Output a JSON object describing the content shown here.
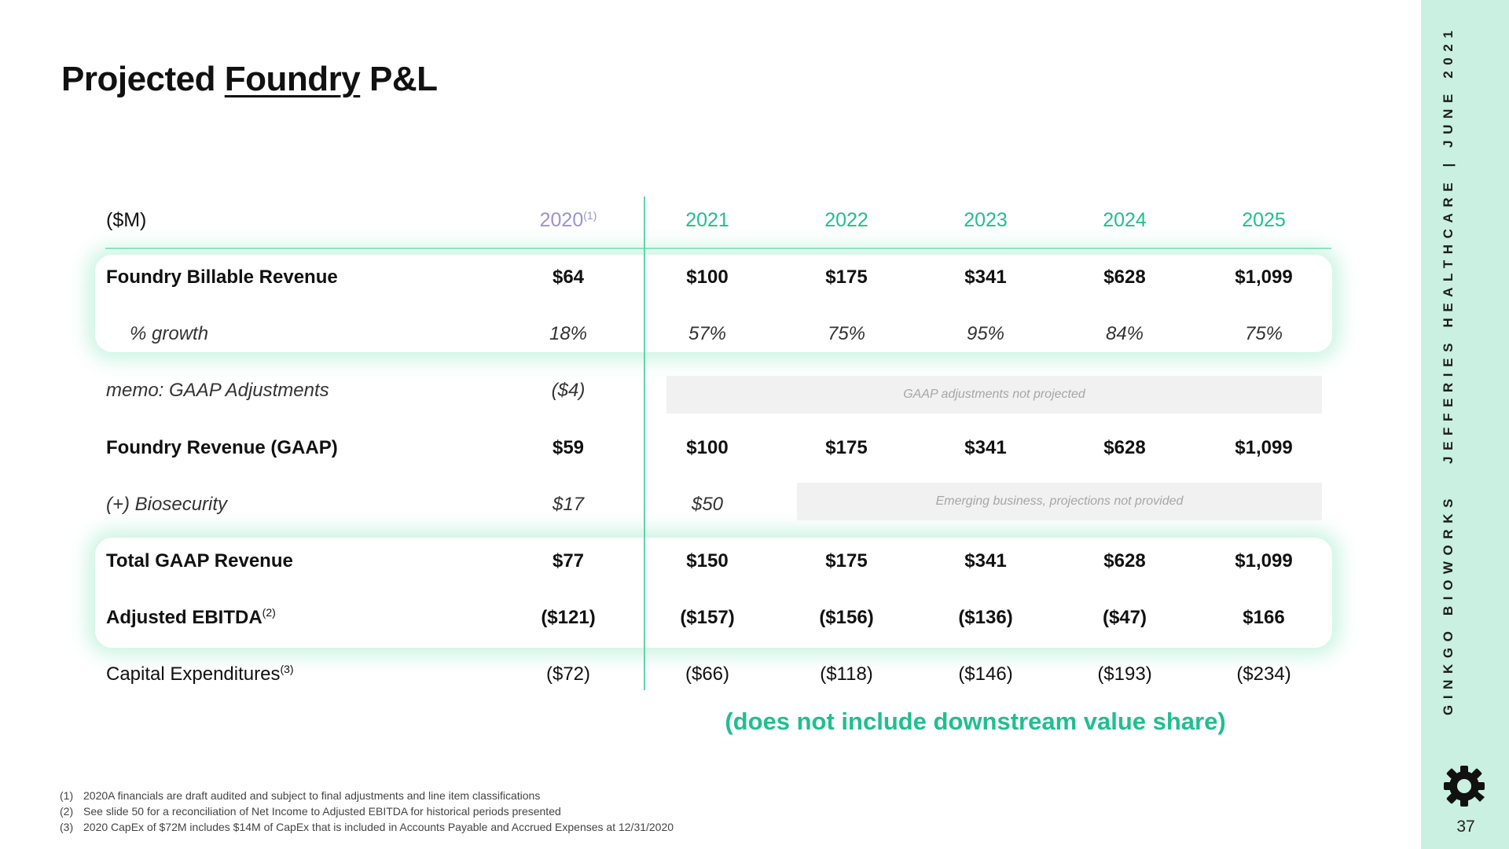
{
  "title": {
    "prefix": "Projected",
    "underlined": "Foundry",
    "suffix": "P&L"
  },
  "sidebar": {
    "text": "GINKGO BIOWORKS   JEFFERIES HEALTHCARE | JUNE 2021",
    "page_number": "37",
    "logo_icon": "ginkgo-logo-icon"
  },
  "colors": {
    "accent": "#1fbf90",
    "sidebar_bg": "#c9f0e1",
    "year_2020": "#9a93ce",
    "note_box": "#f1f1f1"
  },
  "table": {
    "unit_label": "($M)",
    "years": [
      "2020",
      "2021",
      "2022",
      "2023",
      "2024",
      "2025"
    ],
    "year_2020_footnote": "(1)",
    "rows": [
      {
        "label": "Foundry Billable Revenue",
        "label_sup": "",
        "values": [
          "$64",
          "$100",
          "$175",
          "$341",
          "$628",
          "$1,099"
        ]
      },
      {
        "label": "% growth",
        "label_sup": "",
        "values": [
          "18%",
          "57%",
          "75%",
          "95%",
          "84%",
          "75%"
        ]
      },
      {
        "label": "memo: GAAP Adjustments",
        "label_sup": "",
        "values": [
          "($4)"
        ]
      },
      {
        "label": "Foundry Revenue (GAAP)",
        "label_sup": "",
        "values": [
          "$59",
          "$100",
          "$175",
          "$341",
          "$628",
          "$1,099"
        ]
      },
      {
        "label": "(+) Biosecurity",
        "label_sup": "",
        "values": [
          "$17",
          "$50"
        ]
      },
      {
        "label": "Total GAAP Revenue",
        "label_sup": "",
        "values": [
          "$77",
          "$150",
          "$175",
          "$341",
          "$628",
          "$1,099"
        ]
      },
      {
        "label": "Adjusted EBITDA",
        "label_sup": "(2)",
        "values": [
          "($121)",
          "($157)",
          "($156)",
          "($136)",
          "($47)",
          "$166"
        ]
      },
      {
        "label": "Capital Expenditures",
        "label_sup": "(3)",
        "values": [
          "($72)",
          "($66)",
          "($118)",
          "($146)",
          "($193)",
          "($234)"
        ]
      }
    ],
    "gaap_note": "GAAP adjustments not projected",
    "biosecurity_note": "Emerging business, projections not provided"
  },
  "downstream_note": "(does not include downstream value share)",
  "footnotes": [
    {
      "num": "(1)",
      "text": "2020A financials are draft audited and subject to final adjustments and line item classifications"
    },
    {
      "num": "(2)",
      "text": "See slide 50 for a reconciliation of Net Income to Adjusted EBITDA for historical periods presented"
    },
    {
      "num": "(3)",
      "text": "2020 CapEx of $72M includes $14M of CapEx that is included in Accounts Payable and Accrued Expenses at 12/31/2020"
    }
  ]
}
